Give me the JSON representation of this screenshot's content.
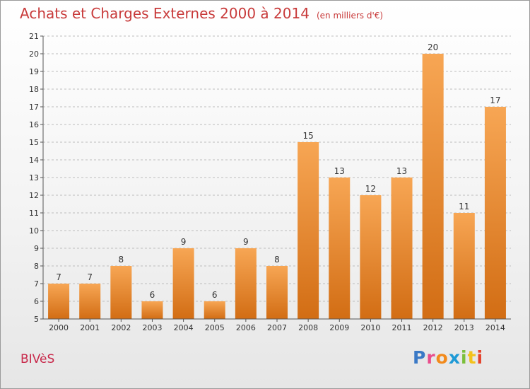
{
  "title": "Achats et Charges Externes 2000 à 2014",
  "unit_note": "(en milliers d'€)",
  "commune": "BIVèS",
  "logo": {
    "text": "Proxiti",
    "letters": [
      "P",
      "r",
      "o",
      "x",
      "i",
      "t",
      "i"
    ]
  },
  "colors": {
    "title": "#c83a3a",
    "bar_top": "#f7a654",
    "bar_bottom": "#d26d14",
    "grid": "#bdbdbd"
  },
  "chart_data": {
    "type": "bar",
    "title": "Achats et Charges Externes 2000 à 2014",
    "xlabel": "",
    "ylabel": "",
    "ylim": [
      5,
      21
    ],
    "yticks": [
      5,
      6,
      7,
      8,
      9,
      10,
      11,
      12,
      13,
      14,
      15,
      16,
      17,
      18,
      19,
      20,
      21
    ],
    "grid": true,
    "categories": [
      "2000",
      "2001",
      "2002",
      "2003",
      "2004",
      "2005",
      "2006",
      "2007",
      "2008",
      "2009",
      "2010",
      "2011",
      "2012",
      "2013",
      "2014"
    ],
    "values": [
      7,
      7,
      8,
      6,
      9,
      6,
      9,
      8,
      15,
      13,
      12,
      13,
      20,
      11,
      17
    ]
  }
}
